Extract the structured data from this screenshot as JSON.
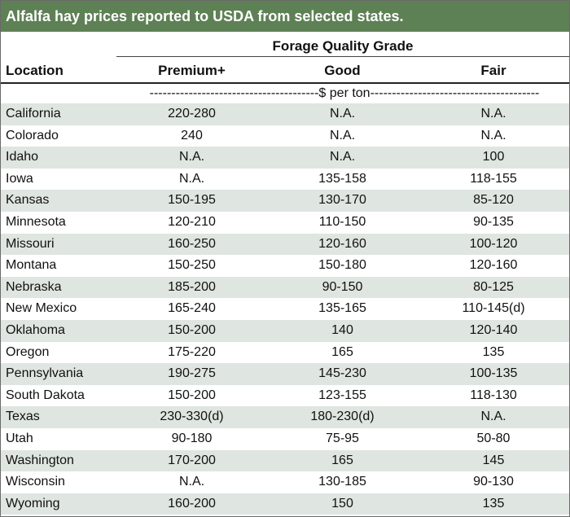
{
  "title": "Alfalfa hay prices reported to USDA from selected states.",
  "group_header": "Forage Quality Grade",
  "columns": {
    "location": "Location",
    "premium": "Premium+",
    "good": "Good",
    "fair": "Fair"
  },
  "units": "---------------------------------------$ per ton---------------------------------------",
  "rows": [
    {
      "location": "California",
      "premium": "220-280",
      "good": "N.A.",
      "fair": "N.A."
    },
    {
      "location": "Colorado",
      "premium": "240",
      "good": "N.A.",
      "fair": "N.A."
    },
    {
      "location": "Idaho",
      "premium": "N.A.",
      "good": "N.A.",
      "fair": "100"
    },
    {
      "location": "Iowa",
      "premium": "N.A.",
      "good": "135-158",
      "fair": "118-155"
    },
    {
      "location": "Kansas",
      "premium": "150-195",
      "good": "130-170",
      "fair": "85-120"
    },
    {
      "location": "Minnesota",
      "premium": "120-210",
      "good": "110-150",
      "fair": "90-135"
    },
    {
      "location": "Missouri",
      "premium": "160-250",
      "good": "120-160",
      "fair": "100-120"
    },
    {
      "location": "Montana",
      "premium": "150-250",
      "good": "150-180",
      "fair": "120-160"
    },
    {
      "location": "Nebraska",
      "premium": "185-200",
      "good": "90-150",
      "fair": "80-125"
    },
    {
      "location": "New Mexico",
      "premium": "165-240",
      "good": "135-165",
      "fair": "110-145(d)"
    },
    {
      "location": "Oklahoma",
      "premium": "150-200",
      "good": "140",
      "fair": "120-140"
    },
    {
      "location": "Oregon",
      "premium": "175-220",
      "good": "165",
      "fair": "135"
    },
    {
      "location": "Pennsylvania",
      "premium": "190-275",
      "good": "145-230",
      "fair": "100-135"
    },
    {
      "location": "South Dakota",
      "premium": "150-200",
      "good": "123-155",
      "fair": "118-130"
    },
    {
      "location": "Texas",
      "premium": "230-330(d)",
      "good": "180-230(d)",
      "fair": "N.A."
    },
    {
      "location": "Utah",
      "premium": "90-180",
      "good": "75-95",
      "fair": "50-80"
    },
    {
      "location": "Washington",
      "premium": "170-200",
      "good": "165",
      "fair": "145"
    },
    {
      "location": "Wisconsin",
      "premium": "N.A.",
      "good": "130-185",
      "fair": "90-130"
    },
    {
      "location": "Wyoming",
      "premium": "160-200",
      "good": "150",
      "fair": "135"
    }
  ],
  "colors": {
    "title_bg": "#5e8055",
    "shaded_row": "#dfe5e0"
  }
}
